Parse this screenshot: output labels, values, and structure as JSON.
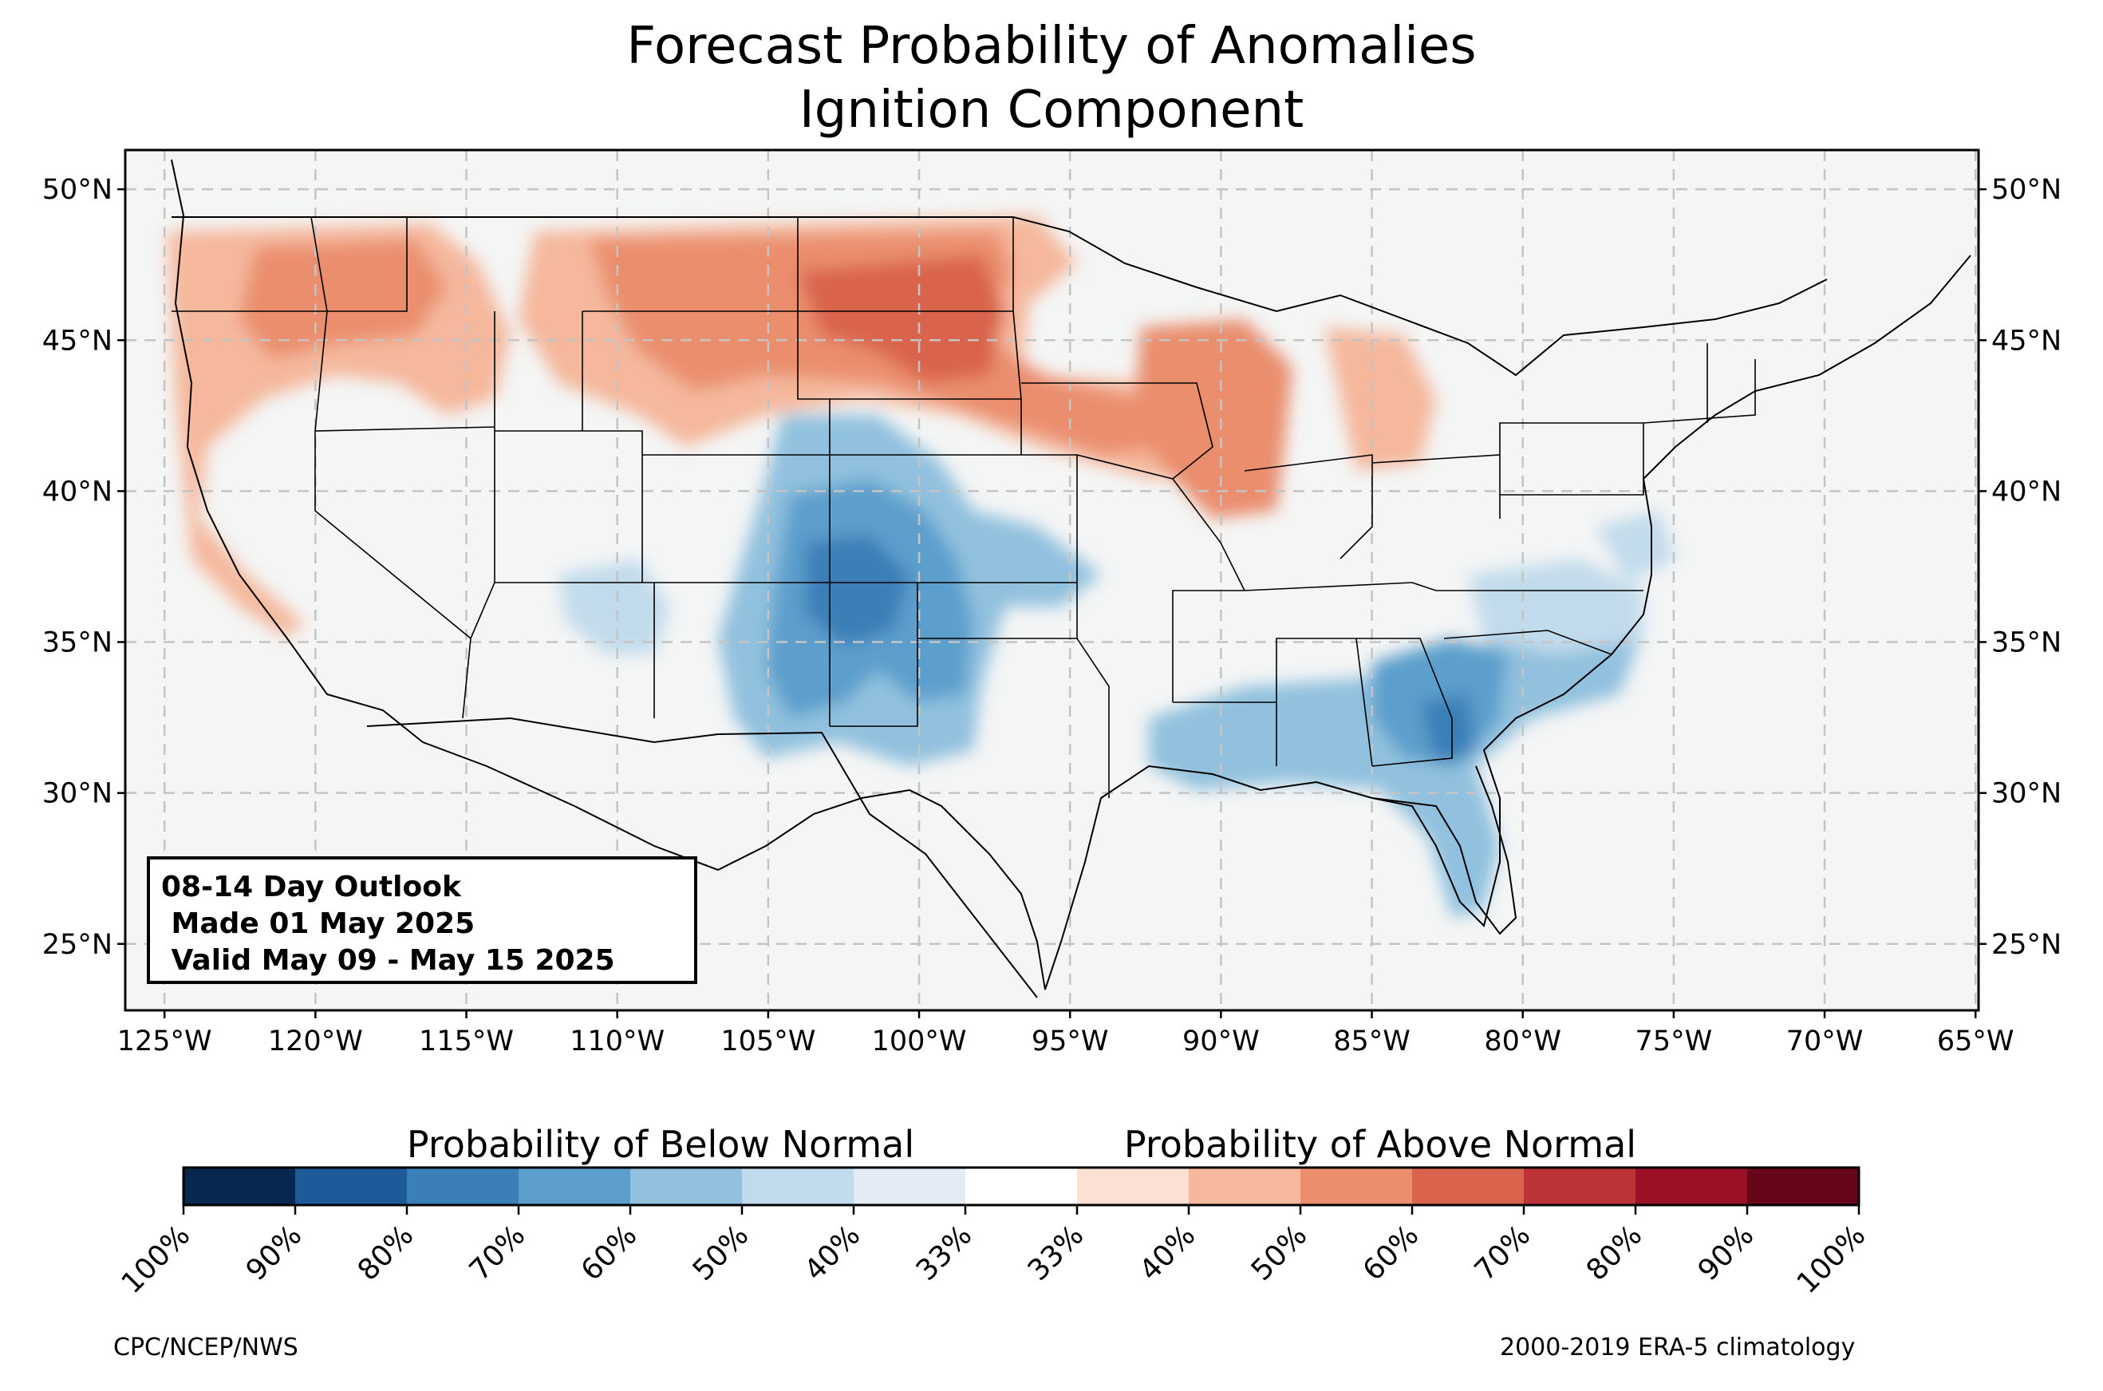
{
  "title": {
    "line1": "Forecast Probability of Anomalies",
    "line2": "Ignition Component"
  },
  "map": {
    "projection": "lon-lat",
    "extent": {
      "lon_min": -126.3,
      "lon_max": -64.9,
      "lat_min": 22.8,
      "lat_max": 51.3
    },
    "background": "#f4f5f5",
    "gridlines": "dashed",
    "lon_ticks": [
      {
        "value": -125,
        "label": "125°W"
      },
      {
        "value": -120,
        "label": "120°W"
      },
      {
        "value": -115,
        "label": "115°W"
      },
      {
        "value": -110,
        "label": "110°W"
      },
      {
        "value": -105,
        "label": "105°W"
      },
      {
        "value": -100,
        "label": "100°W"
      },
      {
        "value": -95,
        "label": "95°W"
      },
      {
        "value": -90,
        "label": "90°W"
      },
      {
        "value": -85,
        "label": "85°W"
      },
      {
        "value": -80,
        "label": "80°W"
      },
      {
        "value": -75,
        "label": "75°W"
      },
      {
        "value": -70,
        "label": "70°W"
      },
      {
        "value": -65,
        "label": "65°W"
      }
    ],
    "lat_ticks": [
      {
        "value": 50,
        "label": "50°N"
      },
      {
        "value": 45,
        "label": "45°N"
      },
      {
        "value": 40,
        "label": "40°N"
      },
      {
        "value": 35,
        "label": "35°N"
      },
      {
        "value": 30,
        "label": "30°N"
      },
      {
        "value": 25,
        "label": "25°N"
      }
    ]
  },
  "anomaly_regions": [
    {
      "region": "Northern Plains / northern Rockies",
      "category": "above",
      "max_probability": "70%"
    },
    {
      "region": "Pacific Northwest / northern California",
      "category": "above",
      "max_probability": "60%"
    },
    {
      "region": "Upper Midwest (Iowa / Wisconsin / Illinois)",
      "category": "above",
      "max_probability": "60%"
    },
    {
      "region": "Southern Plains (Kansas / Oklahoma / Texas Panhandle / New Mexico)",
      "category": "below",
      "max_probability": "70%"
    },
    {
      "region": "Southeast (Georgia / South Carolina / Florida)",
      "category": "below",
      "max_probability": "70%"
    },
    {
      "region": "Gulf Coast / Mississippi / Alabama",
      "category": "below",
      "max_probability": "60%"
    }
  ],
  "info_box": {
    "line1": "08-14 Day Outlook",
    "line2": " Made 01 May 2025",
    "line3": " Valid May 09 - May 15 2025"
  },
  "colorbar": {
    "below_label": "Probability of Below Normal",
    "above_label": "Probability of Above Normal",
    "colors": [
      "#08274f",
      "#1c5a99",
      "#3a7fb8",
      "#5c9fcc",
      "#91c1de",
      "#c2dbec",
      "#e3ecf4",
      "#ffffff",
      "#fbe1d3",
      "#f5b89c",
      "#ea8e6e",
      "#d9634d",
      "#bd3237",
      "#9a1127",
      "#660719"
    ],
    "tick_labels": [
      "100%",
      "90%",
      "80%",
      "70%",
      "60%",
      "50%",
      "40%",
      "33%",
      "33%",
      "40%",
      "50%",
      "60%",
      "70%",
      "80%",
      "90%",
      "100%"
    ]
  },
  "credits": {
    "left": "CPC/NCEP/NWS",
    "right": "2000-2019 ERA-5 climatology"
  }
}
